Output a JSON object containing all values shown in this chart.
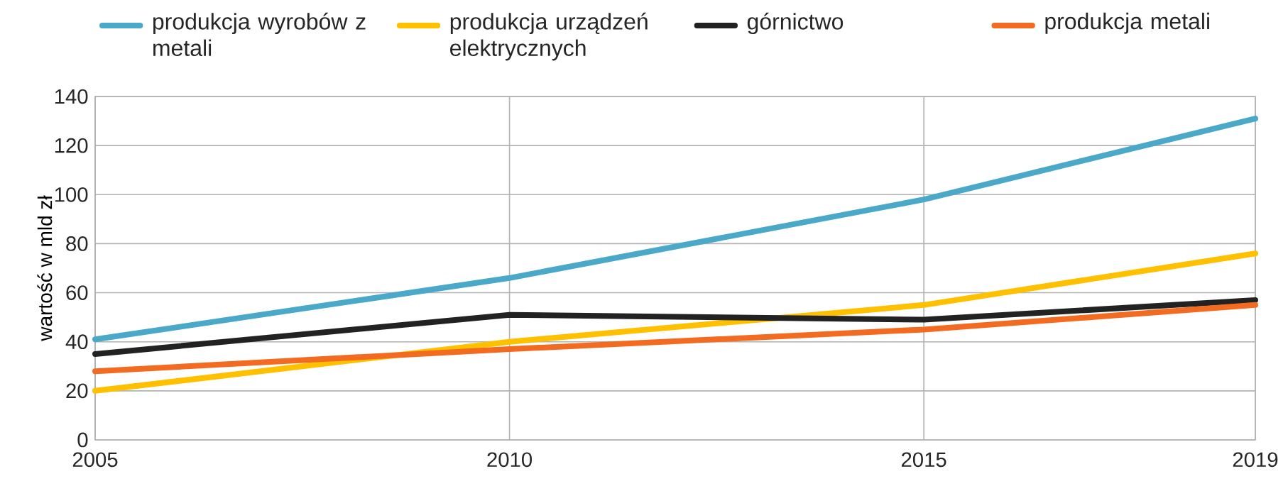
{
  "chart_data": {
    "type": "line",
    "ylabel": "wartość w mld zł",
    "x": [
      2005,
      2010,
      2015,
      2019
    ],
    "series": [
      {
        "name": "produkcja wyrobów z metali",
        "color": "#4aa8c8",
        "values": [
          41,
          66,
          98,
          131
        ]
      },
      {
        "name": "produkcja urządzeń elektrycznych",
        "color": "#ffc000",
        "values": [
          20,
          40,
          55,
          76
        ]
      },
      {
        "name": "górnictwo",
        "color": "#222222",
        "values": [
          35,
          51,
          49,
          57
        ]
      },
      {
        "name": "produkcja metali",
        "color": "#f26b21",
        "values": [
          28,
          37,
          45,
          55
        ]
      }
    ],
    "xlim": [
      2005,
      2019
    ],
    "ylim": [
      0,
      140
    ],
    "xticks": [
      2005,
      2010,
      2015,
      2019
    ],
    "yticks": [
      0,
      20,
      40,
      60,
      80,
      100,
      120,
      140
    ],
    "grid": true,
    "legend": "top",
    "line_style": "solid",
    "marker": "none"
  }
}
